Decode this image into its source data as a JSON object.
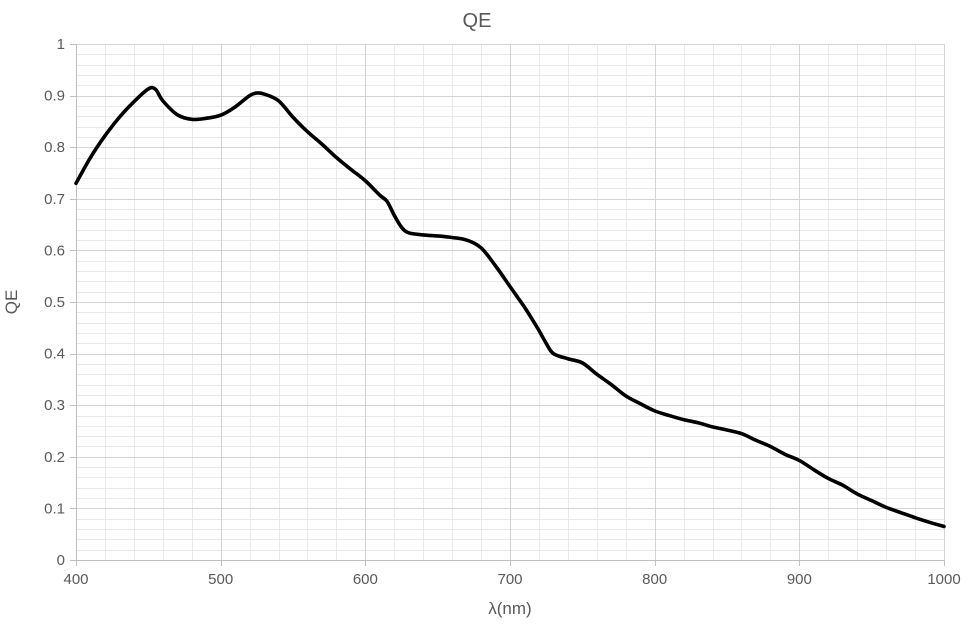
{
  "chart_data": {
    "type": "line",
    "title": "QE",
    "xlabel": "λ(nm)",
    "ylabel": "QE",
    "xlim": [
      400,
      1000
    ],
    "ylim": [
      0,
      1
    ],
    "x_major_step": 100,
    "x_minor_step": 20,
    "y_major_step": 0.1,
    "y_minor_step": 0.02,
    "x_tick_labels": [
      "400",
      "500",
      "600",
      "700",
      "800",
      "900",
      "1000"
    ],
    "y_tick_labels": [
      "0",
      "0.1",
      "0.2",
      "0.3",
      "0.4",
      "0.5",
      "0.6",
      "0.7",
      "0.8",
      "0.9",
      "1"
    ],
    "grid": "major+minor",
    "legend": "none",
    "series": [
      {
        "name": "QE",
        "x": [
          400,
          410,
          420,
          430,
          440,
          450,
          455,
          460,
          470,
          480,
          490,
          500,
          510,
          520,
          525,
          530,
          540,
          550,
          560,
          570,
          580,
          590,
          600,
          610,
          615,
          620,
          625,
          630,
          640,
          650,
          660,
          670,
          680,
          690,
          700,
          710,
          715,
          720,
          725,
          730,
          740,
          750,
          760,
          770,
          780,
          790,
          800,
          810,
          820,
          830,
          840,
          850,
          860,
          870,
          880,
          890,
          900,
          910,
          920,
          930,
          940,
          950,
          960,
          970,
          980,
          990,
          1000
        ],
        "y": [
          0.73,
          0.78,
          0.822,
          0.858,
          0.888,
          0.913,
          0.912,
          0.89,
          0.863,
          0.854,
          0.856,
          0.862,
          0.878,
          0.9,
          0.905,
          0.903,
          0.89,
          0.858,
          0.83,
          0.806,
          0.78,
          0.757,
          0.735,
          0.707,
          0.695,
          0.668,
          0.645,
          0.634,
          0.63,
          0.628,
          0.625,
          0.62,
          0.605,
          0.57,
          0.53,
          0.49,
          0.468,
          0.445,
          0.42,
          0.4,
          0.39,
          0.382,
          0.36,
          0.34,
          0.318,
          0.303,
          0.289,
          0.28,
          0.272,
          0.266,
          0.258,
          0.252,
          0.245,
          0.232,
          0.22,
          0.205,
          0.193,
          0.175,
          0.158,
          0.145,
          0.128,
          0.115,
          0.102,
          0.092,
          0.082,
          0.073,
          0.065
        ]
      }
    ],
    "colors": {
      "line": "#000000",
      "major_grid": "#d3d3d3",
      "minor_grid": "#e9e9e9",
      "axis": "#bfbfbf",
      "text": "#595959",
      "background": "#ffffff"
    }
  }
}
